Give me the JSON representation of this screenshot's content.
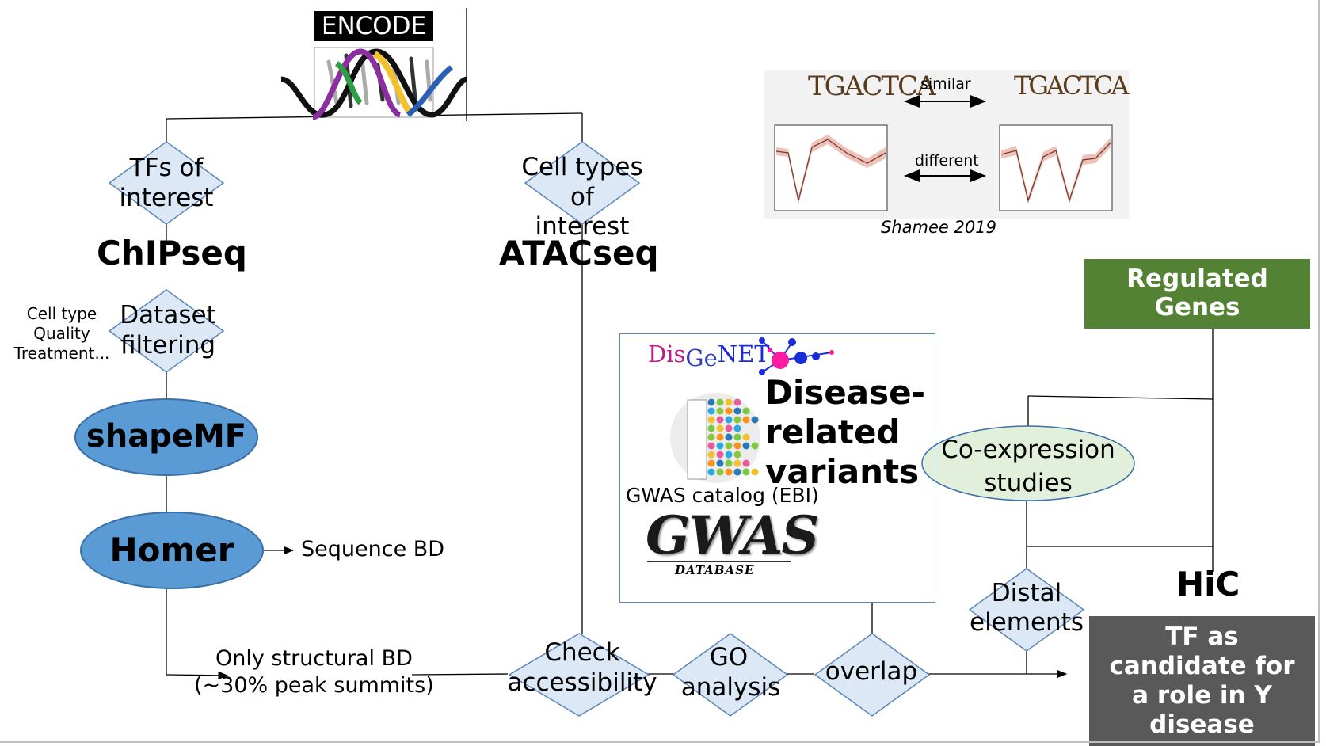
{
  "encode": {
    "logo_text": "ENCODE"
  },
  "shamee": {
    "motif_left": "TGACTCA",
    "motif_right": "TGACTCA",
    "similar_label": "similar",
    "different_label": "different",
    "citation": "Shamee 2019"
  },
  "left_branch": {
    "tfs_line1": "TFs of",
    "tfs_line2": "interest",
    "chipseq": "ChIPseq",
    "filter_notes": [
      "Cell type",
      "Quality",
      "Treatment..."
    ],
    "dataset_line1": "Dataset",
    "dataset_line2": "filtering",
    "shapemf": "shapeMF",
    "homer": "Homer",
    "sequence_bd": "Sequence BD",
    "structural_line1": "Only structural BD",
    "structural_line2": "(~30% peak summits)"
  },
  "right_branch": {
    "cell_line1": "Cell types",
    "cell_line2": "of",
    "cell_line3": "interest",
    "atacseq": "ATACseq"
  },
  "bottom_flow": {
    "check_line1": "Check",
    "check_line2": "accessibility",
    "go_line1": "GO",
    "go_line2": "analysis",
    "overlap": "overlap"
  },
  "disease_panel": {
    "disgenet_dis": "Dis",
    "disgenet_ge": "Ge",
    "disgenet_net": "NET",
    "title_line1": "Disease-",
    "title_line2": "related",
    "title_line3": "variants",
    "gwas_catalog": "GWAS catalog (EBI)",
    "gwas_logo": "GWAS",
    "gwas_sub": "DATABASE"
  },
  "coexpression": {
    "line1": "Co-expression",
    "line2": "studies"
  },
  "distal": {
    "line1": "Distal",
    "line2": "elements"
  },
  "hic": "HiC",
  "regulated": {
    "line1": "Regulated",
    "line2": "Genes",
    "color": "#548235"
  },
  "candidate": {
    "lines": [
      "TF as",
      "candidate for",
      "a role in Y",
      "disease"
    ],
    "color": "#595959"
  },
  "colors": {
    "diamond_fill": "#dce8f5",
    "diamond_stroke": "#5b86b8",
    "oval_fill": "#5b9bd5",
    "oval_stroke": "#3a6fa8",
    "coexp_fill": "#e2efda"
  }
}
